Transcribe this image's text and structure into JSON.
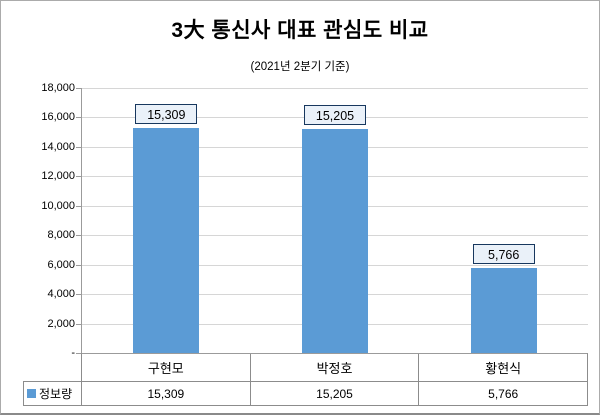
{
  "chart_data": {
    "type": "bar",
    "title": "3大 통신사 대표 관심도 비교",
    "subtitle": "(2021년 2분기 기준)",
    "categories": [
      "구현모",
      "박정호",
      "황현식"
    ],
    "series": [
      {
        "name": "정보량",
        "values": [
          15309,
          15205,
          5766
        ]
      }
    ],
    "value_labels": [
      "15,309",
      "15,205",
      "5,766"
    ],
    "ylim": [
      0,
      18000
    ],
    "ytick_step": 2000,
    "yticks": [
      "18,000",
      "16,000",
      "14,000",
      "12,000",
      "10,000",
      "8,000",
      "6,000",
      "4,000",
      "2,000",
      "-"
    ],
    "grid": true,
    "legend_position": "bottom-table",
    "data_table": {
      "legend_label": "정보량",
      "row_values": [
        "15,309",
        "15,205",
        "5,766"
      ]
    },
    "colors": {
      "bar": "#5B9BD5",
      "label_box_fill": "#EAF1F9",
      "label_box_border": "#17375E",
      "gridline": "#D6D6D6",
      "axis_line": "#9B9B9B",
      "table_border": "#8C8C8C",
      "text": "#000000"
    }
  }
}
